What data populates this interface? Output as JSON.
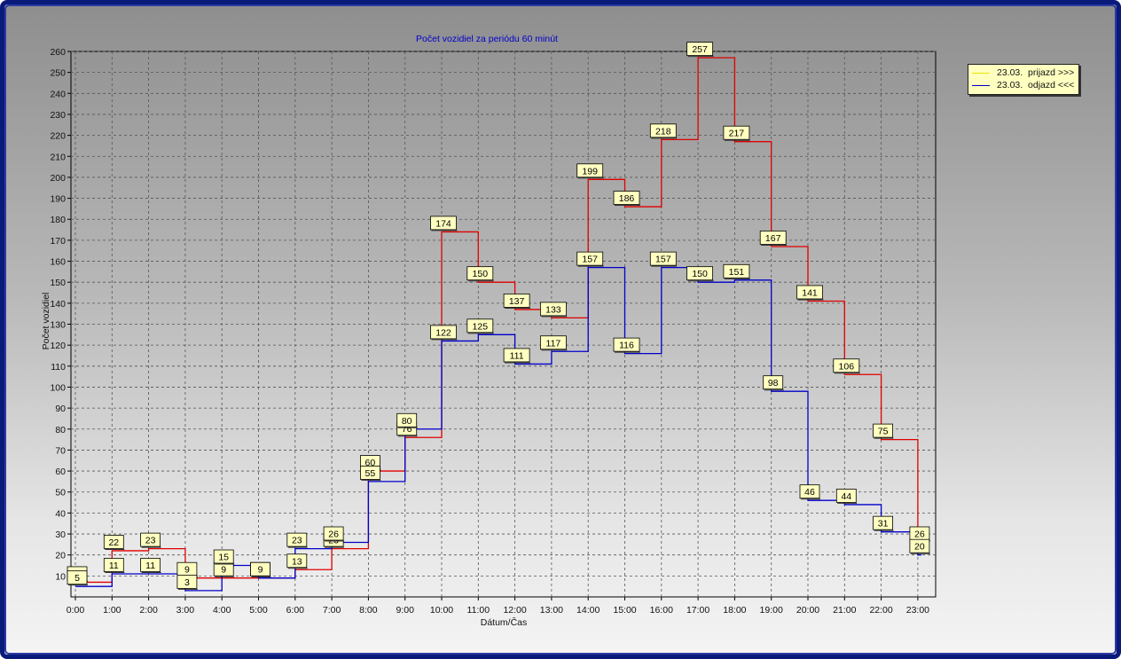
{
  "chart_data": {
    "type": "line",
    "step": true,
    "title": "Počet vozidiel za periódu 60 minút",
    "xlabel": "Dátum/Čas",
    "ylabel": "Počet vozidiel",
    "categories": [
      "0:00",
      "1:00",
      "2:00",
      "3:00",
      "4:00",
      "5:00",
      "6:00",
      "7:00",
      "8:00",
      "9:00",
      "10:00",
      "11:00",
      "12:00",
      "13:00",
      "14:00",
      "15:00",
      "16:00",
      "17:00",
      "18:00",
      "19:00",
      "20:00",
      "21:00",
      "22:00",
      "23:00"
    ],
    "ylim": [
      0,
      260
    ],
    "yticks": [
      10,
      20,
      30,
      40,
      50,
      60,
      70,
      80,
      90,
      100,
      110,
      120,
      130,
      140,
      150,
      160,
      170,
      180,
      190,
      200,
      210,
      220,
      230,
      240,
      250,
      260
    ],
    "grid": true,
    "legend_position": "top-right",
    "series": [
      {
        "name": "23.03.  prijazd >>>",
        "color": "#e00000",
        "values": [
          7,
          22,
          23,
          9,
          9,
          9,
          13,
          23,
          60,
          76,
          174,
          150,
          137,
          133,
          199,
          186,
          218,
          257,
          217,
          167,
          141,
          106,
          75,
          26
        ]
      },
      {
        "name": "23.03.  odjazd <<<",
        "color": "#0000cc",
        "values": [
          5,
          11,
          11,
          3,
          15,
          9,
          23,
          26,
          55,
          80,
          122,
          125,
          111,
          117,
          157,
          116,
          157,
          150,
          151,
          98,
          46,
          44,
          31,
          20
        ]
      }
    ]
  },
  "colors": {
    "frame_border": "#0a1a7a",
    "title_color": "#0000cc",
    "label_bg": "#ffffc0",
    "legend_bg": "#ffffc0"
  }
}
